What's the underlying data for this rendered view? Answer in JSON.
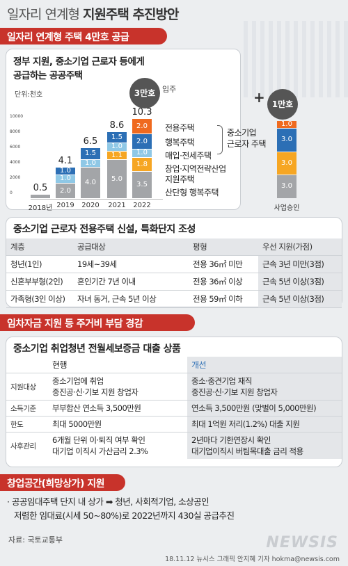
{
  "header": {
    "title_thin": "일자리 연계형 ",
    "title_bold": "지원주택 추진방안"
  },
  "section1": {
    "bar_label": "일자리 연계형 주택 4만호 공급",
    "panel_title_line1": "정부 지원, 중소기업 근로자 등에게",
    "panel_title_line2": "공급하는 공공주택",
    "unit": "단위:천호",
    "bubble_main": "3만호",
    "bubble_main_suffix": "입주",
    "bubble_plus": "+",
    "bubble_second": "1만호",
    "legend": {
      "brace_label_line1": "중소기업",
      "brace_label_line2": "근로자 주택",
      "items": [
        "전용주택",
        "행복주택",
        "매입·전세주택",
        "창업·지역전략산업",
        "지원주택",
        "산단형 행복주택"
      ]
    }
  },
  "chart_data": {
    "type": "bar",
    "stacked": true,
    "categories": [
      "2018년",
      "2019",
      "2020",
      "2021",
      "2022",
      "사업승인"
    ],
    "totals": [
      "0.5",
      "4.1",
      "6.5",
      "8.6",
      "10.3",
      ""
    ],
    "y_ticks": [
      "10000",
      "8000",
      "6000",
      "4000",
      "2000",
      "0"
    ],
    "series": [
      {
        "name": "산단형 행복주택",
        "color": "#a3a5a8",
        "values": [
          0.5,
          2.0,
          4.0,
          5.0,
          3.5,
          3.0
        ],
        "labels": [
          "",
          "2.0",
          "4.0",
          "5.0",
          "3.5",
          "3.0"
        ]
      },
      {
        "name": "창업·지역전략산업 지원주택",
        "color": "#f6a623",
        "values": [
          0,
          0,
          0,
          1.1,
          1.8,
          3.0
        ],
        "labels": [
          "",
          "",
          "",
          "1.1",
          "1.8",
          "3.0"
        ]
      },
      {
        "name": "매입·전세주택",
        "color": "#8fc8e6",
        "values": [
          0,
          1.0,
          1.0,
          1.0,
          1.0,
          0
        ],
        "labels": [
          "",
          "1.0",
          "1.0",
          "1.0",
          "1.0",
          ""
        ]
      },
      {
        "name": "행복주택",
        "color": "#2c6fb5",
        "values": [
          0,
          1.0,
          1.5,
          1.5,
          2.0,
          3.0
        ],
        "labels": [
          "",
          "1.0",
          "1.5",
          "1.5",
          "2.0",
          "3.0"
        ]
      },
      {
        "name": "전용주택",
        "color": "#ef6a1f",
        "values": [
          0,
          0,
          0,
          0,
          2.0,
          1.0
        ],
        "labels": [
          "",
          "",
          "",
          "",
          "2.0",
          "1.0"
        ]
      }
    ]
  },
  "section2": {
    "panel_title": "중소기업 근로자 전용주택 신설, 특화단지 조성",
    "headers": [
      "계층",
      "공급대상",
      "평형",
      "우선 지원(가점)"
    ],
    "rows": [
      [
        "청년(1인)",
        "19세~39세",
        "전용 36㎡ 미만",
        "근속 3년 미만(3점)"
      ],
      [
        "신혼부부형(2인)",
        "혼인기간 7년 이내",
        "전용 36㎡ 이상",
        "근속 5년 이상(3점)"
      ],
      [
        "가족형(3인 이상)",
        "자녀 동거, 근속 5년 이상",
        "전용 59㎡ 이하",
        "근속 5년 이상(3점)"
      ]
    ]
  },
  "section3": {
    "bar_label": "임차자금 지원 등 주거비 부담 경감",
    "panel_title": "중소기업 취업청년 전월세보증금 대출 상품",
    "col_current": "현행",
    "col_new": "개선",
    "rows": [
      {
        "label": "지원대상",
        "current": [
          "중소기업에 취업",
          "중진공·신·기보 지원 창업자"
        ],
        "new": [
          "중소·중견기업 재직",
          "중진공·신·기보 지원 창업자"
        ]
      },
      {
        "label": "소득기준",
        "current": [
          "부부합산 연소득 3,500만원"
        ],
        "new": [
          "연소득 3,500만원 (맞벌이 5,000만원)"
        ]
      },
      {
        "label": "한도",
        "current": [
          "최대 5000만원"
        ],
        "new": [
          "최대 1억원 저리(1.2%) 대출 지원"
        ]
      },
      {
        "label": "사후관리",
        "current": [
          "6개월 단위 이·퇴직 여부 확인",
          "대기업 이직시 가산금리 2.3%"
        ],
        "new": [
          "2년마다 기한연장시 확인",
          "대기업이직시 버팀목대출 금리 적용"
        ]
      }
    ]
  },
  "section4": {
    "bar_label": "창업공간(희망상가) 지원",
    "bullet_line1": "· 공공임대주택 단지 내 상가 ➡ 청년, 사회적기업, 소상공인",
    "bullet_line2": "저렴한 임대료(시세 50~80%)로 2022년까지 430실 공급추진"
  },
  "footer": {
    "source": "자료: 국토교통부",
    "credit": "18.11.12 뉴시스 그래픽 안지혜 기자 hokma@newsis.com",
    "logo": "NEWSIS"
  }
}
